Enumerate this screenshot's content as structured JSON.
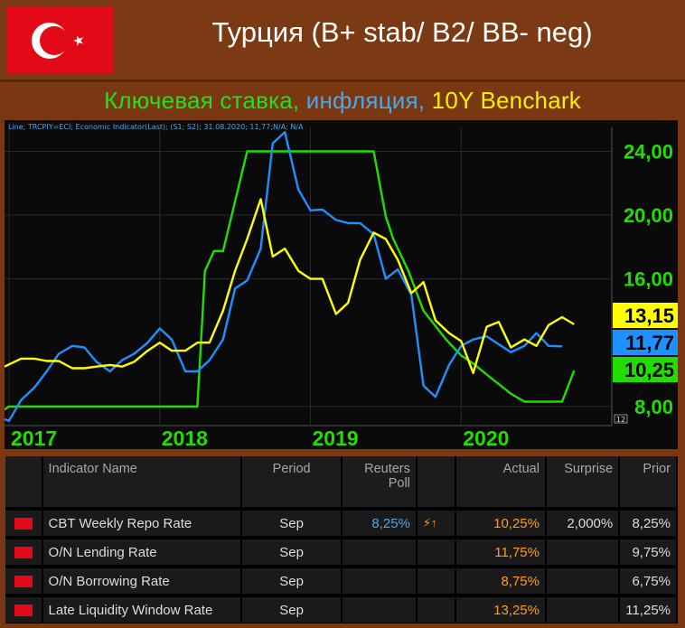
{
  "header": {
    "title": "Турция (B+ stab/ B2/ BB- neg)",
    "subtitle_parts": [
      "Ключевая ставка, ",
      "инфляция, ",
      "10Y Benchark"
    ]
  },
  "chart_data": {
    "type": "line",
    "legend_text": "Line; TRCPIY=ECI; Economic Indicator(Last); (S1; S2); 31.08.2020; 11,77;N/A; N/A",
    "y_ticks": [
      "24,00",
      "20,00",
      "16,00",
      "8,00"
    ],
    "x_ticks": [
      "2017",
      "2018",
      "2019",
      "2020"
    ],
    "y_range": [
      6.8,
      25.5
    ],
    "x_range": [
      2016.97,
      2021.0
    ],
    "axis_badge": "12",
    "last_labels": [
      {
        "text": "13,15",
        "color": "#ffff00"
      },
      {
        "text": "11,77",
        "color": "#1e90ff"
      },
      {
        "text": "10,25",
        "color": "#22dd00"
      }
    ],
    "series": [
      {
        "color": "#22dd00",
        "points": [
          [
            2016.97,
            7.8
          ],
          [
            2017.0,
            8.0
          ],
          [
            2018.25,
            8.0
          ],
          [
            2018.3,
            16.5
          ],
          [
            2018.36,
            17.75
          ],
          [
            2018.42,
            17.75
          ],
          [
            2018.58,
            24.0
          ],
          [
            2019.42,
            24.0
          ],
          [
            2019.5,
            19.9
          ],
          [
            2019.55,
            18.5
          ],
          [
            2019.65,
            16.5
          ],
          [
            2019.75,
            14.0
          ],
          [
            2019.9,
            12.2
          ],
          [
            2020.0,
            11.2
          ],
          [
            2020.08,
            10.7
          ],
          [
            2020.17,
            10.0
          ],
          [
            2020.25,
            9.4
          ],
          [
            2020.33,
            8.8
          ],
          [
            2020.42,
            8.3
          ],
          [
            2020.67,
            8.3
          ],
          [
            2020.75,
            10.25
          ]
        ]
      },
      {
        "color": "#1e90ff",
        "points": [
          [
            2016.97,
            7.2
          ],
          [
            2017.0,
            7.1
          ],
          [
            2017.08,
            8.4
          ],
          [
            2017.17,
            9.2
          ],
          [
            2017.25,
            10.2
          ],
          [
            2017.33,
            11.3
          ],
          [
            2017.42,
            11.8
          ],
          [
            2017.5,
            11.7
          ],
          [
            2017.58,
            10.8
          ],
          [
            2017.67,
            10.2
          ],
          [
            2017.75,
            10.9
          ],
          [
            2017.83,
            11.3
          ],
          [
            2017.92,
            12.0
          ],
          [
            2018.0,
            12.9
          ],
          [
            2018.08,
            12.2
          ],
          [
            2018.17,
            10.2
          ],
          [
            2018.25,
            10.2
          ],
          [
            2018.33,
            10.9
          ],
          [
            2018.42,
            12.2
          ],
          [
            2018.5,
            15.4
          ],
          [
            2018.58,
            15.9
          ],
          [
            2018.67,
            17.9
          ],
          [
            2018.75,
            24.5
          ],
          [
            2018.83,
            25.2
          ],
          [
            2018.92,
            21.6
          ],
          [
            2019.0,
            20.3
          ],
          [
            2019.08,
            20.35
          ],
          [
            2019.17,
            19.7
          ],
          [
            2019.25,
            19.5
          ],
          [
            2019.33,
            19.5
          ],
          [
            2019.42,
            18.8
          ],
          [
            2019.5,
            16.0
          ],
          [
            2019.58,
            16.6
          ],
          [
            2019.67,
            15.0
          ],
          [
            2019.75,
            9.3
          ],
          [
            2019.83,
            8.6
          ],
          [
            2019.92,
            10.6
          ],
          [
            2020.0,
            11.8
          ],
          [
            2020.08,
            12.2
          ],
          [
            2020.17,
            12.4
          ],
          [
            2020.25,
            11.9
          ],
          [
            2020.33,
            11.4
          ],
          [
            2020.42,
            11.8
          ],
          [
            2020.5,
            12.6
          ],
          [
            2020.58,
            11.8
          ],
          [
            2020.67,
            11.77
          ]
        ]
      },
      {
        "color": "#ffff00",
        "points": [
          [
            2016.97,
            10.5
          ],
          [
            2017.08,
            11.0
          ],
          [
            2017.17,
            11.0
          ],
          [
            2017.25,
            10.85
          ],
          [
            2017.33,
            10.85
          ],
          [
            2017.42,
            10.4
          ],
          [
            2017.5,
            10.4
          ],
          [
            2017.58,
            10.5
          ],
          [
            2017.67,
            10.6
          ],
          [
            2017.75,
            10.5
          ],
          [
            2017.83,
            10.8
          ],
          [
            2017.92,
            11.5
          ],
          [
            2018.0,
            12.0
          ],
          [
            2018.08,
            11.5
          ],
          [
            2018.17,
            11.5
          ],
          [
            2018.25,
            12.0
          ],
          [
            2018.33,
            12.0
          ],
          [
            2018.42,
            14.0
          ],
          [
            2018.5,
            16.5
          ],
          [
            2018.58,
            18.5
          ],
          [
            2018.67,
            21.0
          ],
          [
            2018.75,
            17.4
          ],
          [
            2018.83,
            17.9
          ],
          [
            2018.92,
            16.5
          ],
          [
            2019.0,
            16.0
          ],
          [
            2019.08,
            16.0
          ],
          [
            2019.17,
            13.8
          ],
          [
            2019.25,
            14.5
          ],
          [
            2019.33,
            17.2
          ],
          [
            2019.42,
            18.9
          ],
          [
            2019.5,
            18.5
          ],
          [
            2019.58,
            17.2
          ],
          [
            2019.67,
            15.1
          ],
          [
            2019.75,
            15.8
          ],
          [
            2019.83,
            13.4
          ],
          [
            2019.92,
            12.6
          ],
          [
            2020.0,
            12.1
          ],
          [
            2020.08,
            10.1
          ],
          [
            2020.17,
            13.0
          ],
          [
            2020.25,
            13.3
          ],
          [
            2020.33,
            11.7
          ],
          [
            2020.42,
            12.2
          ],
          [
            2020.5,
            11.8
          ],
          [
            2020.58,
            13.1
          ],
          [
            2020.67,
            13.6
          ],
          [
            2020.75,
            13.15
          ]
        ]
      }
    ]
  },
  "table": {
    "headers": [
      "Indicator Name",
      "Period",
      "Reuters Poll",
      "Actual",
      "Surprise",
      "Prior"
    ],
    "rows": [
      {
        "name": "CBT Weekly Repo Rate",
        "period": "Sep",
        "poll": "8,25%",
        "flag_icon": "⚡↑",
        "actual": "10,25%",
        "surprise": "2,000%",
        "prior": "8,25%"
      },
      {
        "name": "O/N Lending Rate",
        "period": "Sep",
        "poll": "",
        "flag_icon": "",
        "actual": "11,75%",
        "surprise": "",
        "prior": "9,75%"
      },
      {
        "name": "O/N Borrowing Rate",
        "period": "Sep",
        "poll": "",
        "flag_icon": "",
        "actual": "8,75%",
        "surprise": "",
        "prior": "6,75%"
      },
      {
        "name": "Late Liquidity Window Rate",
        "period": "Sep",
        "poll": "",
        "flag_icon": "",
        "actual": "13,25%",
        "surprise": "",
        "prior": "11,25%"
      }
    ]
  }
}
